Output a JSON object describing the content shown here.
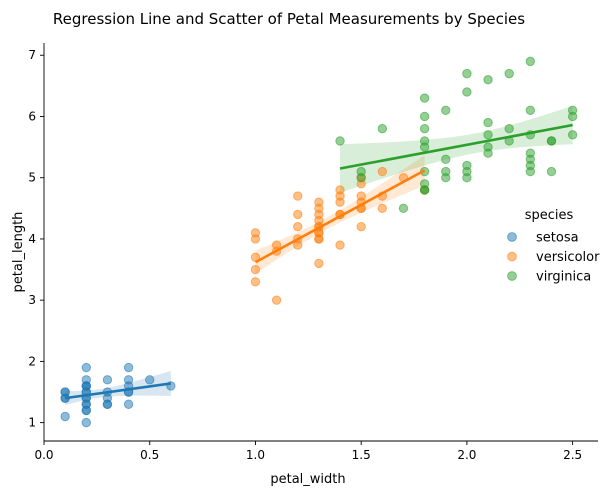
{
  "chart_data": {
    "type": "scatter",
    "title": "Regression Line and Scatter of Petal Measurements by Species",
    "xlabel": "petal_width",
    "ylabel": "petal_length",
    "xlim": [
      0.0,
      2.62
    ],
    "ylim": [
      0.7,
      7.2
    ],
    "xticks": [
      "0.0",
      "0.5",
      "1.0",
      "1.5",
      "2.0",
      "2.5"
    ],
    "yticks": [
      "1",
      "2",
      "3",
      "4",
      "5",
      "6",
      "7"
    ],
    "legend": {
      "title": "species",
      "placement": "right"
    },
    "series": [
      {
        "name": "setosa",
        "color": "#1f77b4",
        "x": [
          0.1,
          0.1,
          0.1,
          0.1,
          0.1,
          0.2,
          0.2,
          0.2,
          0.2,
          0.2,
          0.2,
          0.2,
          0.2,
          0.2,
          0.2,
          0.2,
          0.2,
          0.2,
          0.2,
          0.3,
          0.3,
          0.3,
          0.3,
          0.3,
          0.4,
          0.4,
          0.4,
          0.4,
          0.4,
          0.4,
          0.5,
          0.6
        ],
        "y": [
          1.1,
          1.4,
          1.5,
          1.5,
          1.4,
          1.0,
          1.2,
          1.3,
          1.4,
          1.4,
          1.5,
          1.5,
          1.6,
          1.6,
          1.7,
          1.9,
          1.2,
          1.3,
          1.6,
          1.3,
          1.4,
          1.5,
          1.7,
          1.3,
          1.3,
          1.5,
          1.6,
          1.7,
          1.9,
          1.5,
          1.7,
          1.6
        ],
        "fit": {
          "x": [
            0.1,
            0.6
          ],
          "y": [
            1.4,
            1.64
          ]
        }
      },
      {
        "name": "versicolor",
        "color": "#ff7f0e",
        "x": [
          1.0,
          1.0,
          1.0,
          1.0,
          1.0,
          1.1,
          1.1,
          1.1,
          1.2,
          1.2,
          1.2,
          1.2,
          1.2,
          1.3,
          1.3,
          1.3,
          1.3,
          1.3,
          1.3,
          1.3,
          1.3,
          1.3,
          1.3,
          1.3,
          1.4,
          1.4,
          1.4,
          1.4,
          1.4,
          1.4,
          1.5,
          1.5,
          1.5,
          1.5,
          1.5,
          1.5,
          1.5,
          1.6,
          1.6,
          1.6,
          1.7,
          1.8
        ],
        "y": [
          3.3,
          3.5,
          3.7,
          4.0,
          4.1,
          3.0,
          3.8,
          3.9,
          3.9,
          4.0,
          4.2,
          4.4,
          4.7,
          3.6,
          4.0,
          4.1,
          4.2,
          4.3,
          4.4,
          4.5,
          4.6,
          4.0,
          4.1,
          4.2,
          3.9,
          4.4,
          4.6,
          4.7,
          4.8,
          4.4,
          4.2,
          4.5,
          4.6,
          4.7,
          4.9,
          4.5,
          5.0,
          4.5,
          4.7,
          5.1,
          5.0,
          4.8
        ],
        "fit": {
          "x": [
            1.0,
            1.8
          ],
          "y": [
            3.62,
            5.12
          ]
        }
      },
      {
        "name": "virginica",
        "color": "#2ca02c",
        "x": [
          1.4,
          1.5,
          1.5,
          1.6,
          1.7,
          1.8,
          1.8,
          1.8,
          1.8,
          1.8,
          1.8,
          1.8,
          1.8,
          1.8,
          1.9,
          1.9,
          1.9,
          1.9,
          2.0,
          2.0,
          2.0,
          2.0,
          2.0,
          2.1,
          2.1,
          2.1,
          2.1,
          2.1,
          2.2,
          2.2,
          2.2,
          2.3,
          2.3,
          2.3,
          2.3,
          2.3,
          2.3,
          2.3,
          2.4,
          2.4,
          2.4,
          2.5,
          2.5,
          2.5
        ],
        "y": [
          5.6,
          5.0,
          5.1,
          5.8,
          4.5,
          4.8,
          4.9,
          5.1,
          5.5,
          5.6,
          5.8,
          6.0,
          6.3,
          4.8,
          5.0,
          5.1,
          5.3,
          6.1,
          5.0,
          5.1,
          5.2,
          6.4,
          6.7,
          5.4,
          5.5,
          5.7,
          5.9,
          6.6,
          5.6,
          5.8,
          6.7,
          5.1,
          5.2,
          5.3,
          5.4,
          5.7,
          6.1,
          6.9,
          5.1,
          5.6,
          5.6,
          5.7,
          6.0,
          6.1
        ],
        "fit": {
          "x": [
            1.4,
            2.5
          ],
          "y": [
            5.15,
            5.86
          ]
        }
      }
    ]
  }
}
